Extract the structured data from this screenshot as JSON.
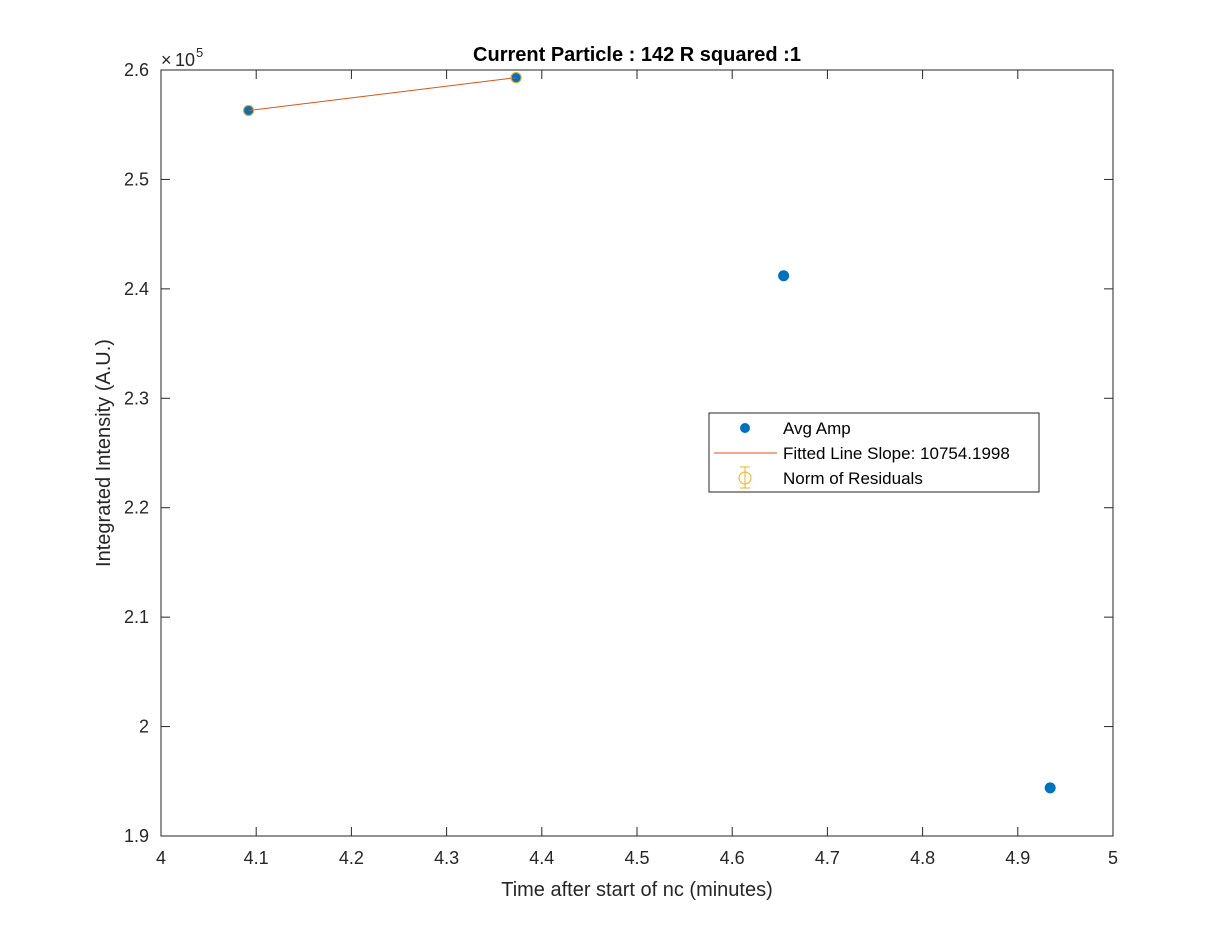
{
  "chart_data": {
    "type": "scatter",
    "title": "Current Particle : 142   R squared :1",
    "xlabel": "Time after start of nc (minutes)",
    "ylabel": "Integrated Intensity (A.U.)",
    "xlim": [
      4,
      5
    ],
    "ylim": [
      190000,
      260000
    ],
    "xticks": [
      "4",
      "4.1",
      "4.2",
      "4.3",
      "4.4",
      "4.5",
      "4.6",
      "4.7",
      "4.8",
      "4.9",
      "5"
    ],
    "yticks": [
      "1.9",
      "2",
      "2.1",
      "2.2",
      "2.3",
      "2.4",
      "2.5",
      "2.6"
    ],
    "y_exponent_base": "10",
    "y_exponent_power": "5",
    "grid": false,
    "legend_placement": "center-right",
    "series": [
      {
        "name": "Avg Amp",
        "kind": "scatter",
        "color": "#0072BD",
        "x": [
          4.092,
          4.373,
          4.654,
          4.934
        ],
        "y": [
          256300,
          259300,
          241200,
          194400
        ]
      },
      {
        "name": "Fitted Line Slope: 10754.1998",
        "kind": "line",
        "color": "#D95319",
        "x": [
          4.092,
          4.373
        ],
        "y": [
          256300,
          259300
        ]
      },
      {
        "name": "Norm of Residuals",
        "kind": "errorbar",
        "color": "#EDB120",
        "x": [
          4.092,
          4.373
        ],
        "y": [
          256300,
          259300
        ]
      }
    ]
  }
}
